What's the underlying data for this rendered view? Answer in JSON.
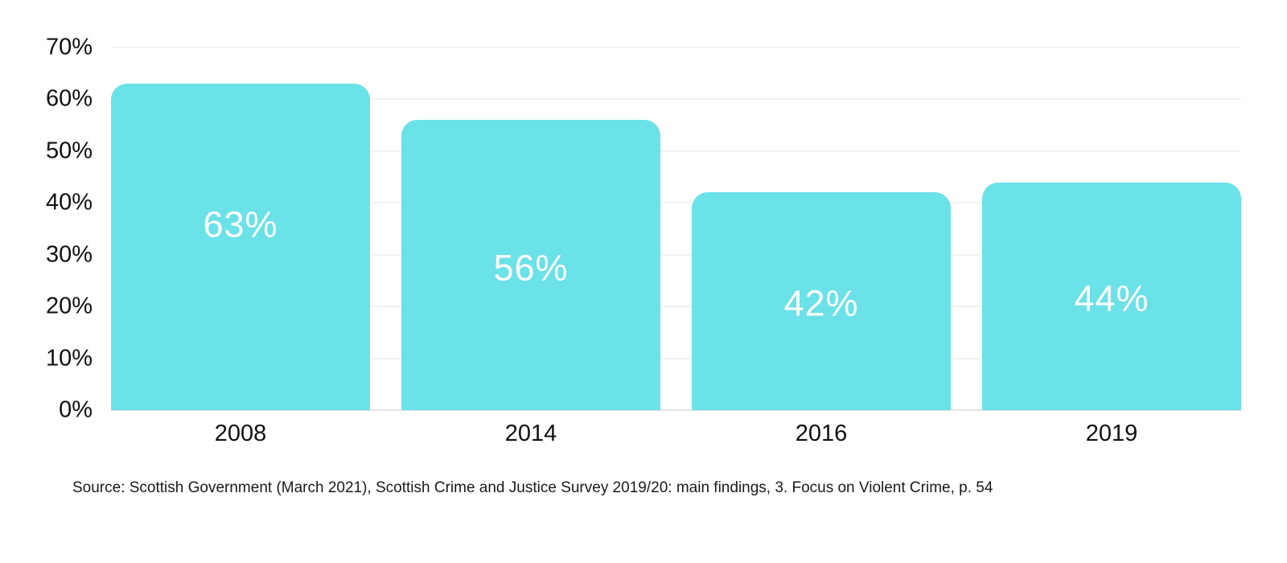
{
  "chart_data": {
    "type": "bar",
    "categories": [
      "2008",
      "2014",
      "2016",
      "2019"
    ],
    "values": [
      63,
      56,
      42,
      44
    ],
    "value_labels": [
      "63%",
      "56%",
      "42%",
      "44%"
    ],
    "title": "",
    "xlabel": "",
    "ylabel": "",
    "ylim": [
      0,
      70
    ],
    "yticks": [
      0,
      10,
      20,
      30,
      40,
      50,
      60,
      70
    ],
    "ytick_labels": [
      "0%",
      "10%",
      "20%",
      "30%",
      "40%",
      "50%",
      "60%",
      "70%"
    ],
    "grid": "horizontal",
    "legend_position": "none",
    "bar_color": "#6be1e8",
    "bar_label_color": "#ffffff",
    "gridline_color": "#e4e4e4",
    "baseline_color": "#cccccc"
  },
  "source_note": "Source: Scottish Government (March 2021), Scottish Crime and Justice Survey 2019/20: main findings, 3. Focus on Violent Crime, p. 54"
}
